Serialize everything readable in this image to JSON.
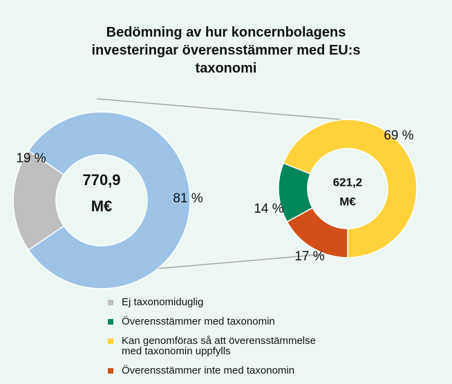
{
  "chart_data": [
    {
      "type": "pie",
      "title": "Bedömning av hur koncernbolagens investeringar överensstämmer med EU:s taxonomi",
      "center_text": [
        "770,9",
        "M€"
      ],
      "categories": [
        "Ej taxonomiduglig",
        null
      ],
      "values": [
        19,
        81
      ],
      "value_labels": [
        "19 %",
        "81 %"
      ],
      "colors": [
        "#bfbfbf",
        "#9dc3e6"
      ],
      "donut": true
    },
    {
      "type": "pie",
      "center_text": [
        "621,2",
        "M€"
      ],
      "categories": [
        "Överensstämmer med taxonomin",
        "Kan genomföras så att överensstämmelse med taxonomin uppfylls",
        "Överensstämmer inte med taxonomin"
      ],
      "values": [
        14,
        69,
        17
      ],
      "value_labels": [
        "14 %",
        "69 %",
        "17 %"
      ],
      "colors": [
        "#00875a",
        "#ffd23c",
        "#d24f1a"
      ],
      "donut": true
    }
  ]
}
